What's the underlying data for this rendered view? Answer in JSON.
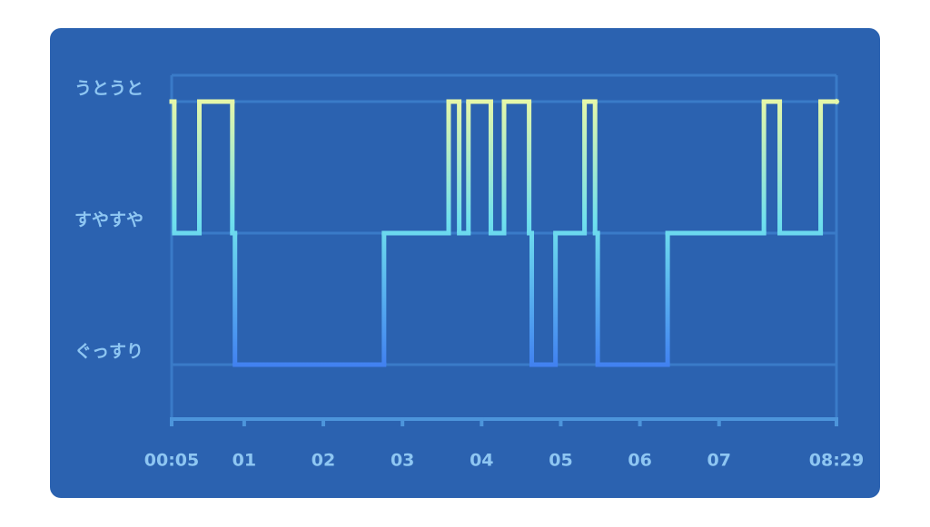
{
  "chart_data": {
    "type": "line",
    "step": "post",
    "x": [
      5,
      7,
      26,
      51,
      53,
      166,
      215,
      223,
      230,
      247,
      257,
      276,
      278,
      296,
      318,
      326,
      328,
      381,
      454,
      466,
      497,
      509
    ],
    "values": [
      3,
      2,
      3,
      2,
      1,
      2,
      3,
      2,
      3,
      2,
      3,
      2,
      1,
      2,
      3,
      2,
      1,
      2,
      3,
      2,
      3,
      3
    ],
    "xlim": [
      5,
      509
    ],
    "xticks": [
      {
        "value": 5,
        "label": "00:05"
      },
      {
        "value": 60,
        "label": "01"
      },
      {
        "value": 120,
        "label": "02"
      },
      {
        "value": 180,
        "label": "03"
      },
      {
        "value": 240,
        "label": "04"
      },
      {
        "value": 300,
        "label": "05"
      },
      {
        "value": 360,
        "label": "06"
      },
      {
        "value": 420,
        "label": "07"
      },
      {
        "value": 509,
        "label": "08:29"
      }
    ],
    "ylim": [
      0.6,
      3.2
    ],
    "yticks": [
      {
        "value": 3,
        "label": "うとうと"
      },
      {
        "value": 2,
        "label": "すやすや"
      },
      {
        "value": 1,
        "label": "ぐっすり"
      }
    ],
    "grid": true
  }
}
